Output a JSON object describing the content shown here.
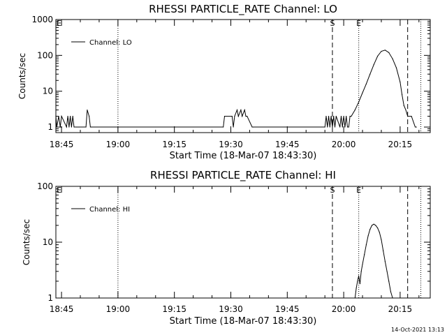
{
  "footer": {
    "timestamp": "14-Oct-2021 13:13"
  },
  "chart_data": [
    {
      "type": "line",
      "title": "RHESSI PARTICLE_RATE Channel: LO",
      "xlabel": "Start Time (18-Mar-07 18:43:30)",
      "ylabel": "Counts/sec",
      "yscale": "log",
      "ylim": [
        0.7,
        1000
      ],
      "xlim": [
        "18:43:30",
        "20:23:00"
      ],
      "x_ticks": [
        "18:45",
        "19:00",
        "19:15",
        "19:30",
        "19:45",
        "20:00",
        "20:15"
      ],
      "y_ticks": [
        "1",
        "10",
        "100",
        "1000"
      ],
      "legend": {
        "position": "top-left",
        "entries": [
          "Channel: LO"
        ]
      },
      "markers": [
        {
          "label": "E",
          "time": "18:43:30",
          "style": "none"
        },
        {
          "label": "",
          "time": "19:00:00",
          "style": "dotted"
        },
        {
          "label": "S",
          "time": "19:57:00",
          "style": "dashed"
        },
        {
          "label": "E",
          "time": "20:04:00",
          "style": "dotted"
        },
        {
          "label": "",
          "time": "20:17:00",
          "style": "dashed"
        },
        {
          "label": "",
          "time": "20:20:30",
          "style": "dotted"
        }
      ],
      "series": [
        {
          "x": [
            "18:43:30",
            "18:43:45",
            "18:44:15",
            "18:44:40",
            "18:45:00",
            "18:46:20",
            "18:46:40",
            "18:47:00",
            "18:47:20",
            "18:47:40",
            "18:48:00",
            "18:48:20",
            "18:49:00",
            "18:49:20",
            "18:49:40",
            "18:51:30",
            "18:51:50",
            "18:52:20",
            "18:52:40",
            "18:53:00",
            "19:28:00",
            "19:28:20",
            "19:30:20",
            "19:30:40",
            "19:31:00",
            "19:31:40",
            "19:32:00",
            "19:32:40",
            "19:33:00",
            "19:33:40",
            "19:34:00",
            "19:34:20",
            "19:35:40",
            "19:36:00",
            "19:55:00",
            "19:55:20",
            "19:55:40",
            "19:56:00",
            "19:56:20",
            "19:56:40",
            "19:57:00",
            "19:57:20",
            "19:57:40",
            "19:58:00",
            "19:59:00",
            "19:59:20",
            "19:59:40",
            "20:00:00",
            "20:00:20",
            "20:00:40",
            "20:01:00",
            "20:01:20",
            "20:01:40",
            "20:02:00",
            "20:03:00",
            "20:04:00",
            "20:05:00",
            "20:06:00",
            "20:07:00",
            "20:08:00",
            "20:09:00",
            "20:10:00",
            "20:11:00",
            "20:12:00",
            "20:13:00",
            "20:14:00",
            "20:15:00",
            "20:15:30",
            "20:16:00",
            "20:16:30",
            "20:17:00",
            "20:18:00",
            "20:19:00",
            "20:19:20"
          ],
          "y": [
            2,
            1,
            2,
            1,
            2,
            1,
            2,
            1,
            2,
            1,
            2,
            1,
            1,
            1,
            1,
            1,
            3,
            2,
            1,
            1,
            1,
            2,
            2,
            1,
            2,
            3,
            2,
            3,
            2,
            3,
            2,
            2,
            1,
            1,
            1,
            2,
            1,
            2,
            1,
            2,
            1,
            2,
            1,
            2,
            1,
            2,
            1,
            2,
            1,
            2,
            1,
            1,
            2,
            2,
            3,
            5,
            9,
            16,
            30,
            55,
            95,
            130,
            140,
            120,
            80,
            45,
            18,
            8,
            4,
            3,
            2,
            2,
            1,
            1
          ]
        }
      ]
    },
    {
      "type": "line",
      "title": "RHESSI PARTICLE_RATE Channel: HI",
      "xlabel": "Start Time (18-Mar-07 18:43:30)",
      "ylabel": "Counts/sec",
      "yscale": "log",
      "ylim": [
        1,
        100
      ],
      "xlim": [
        "18:43:30",
        "20:23:00"
      ],
      "x_ticks": [
        "18:45",
        "19:00",
        "19:15",
        "19:30",
        "19:45",
        "20:00",
        "20:15"
      ],
      "y_ticks": [
        "1",
        "10",
        "100"
      ],
      "legend": {
        "position": "top-left",
        "entries": [
          "Channel: HI"
        ]
      },
      "markers": [
        {
          "label": "E",
          "time": "18:43:30",
          "style": "none"
        },
        {
          "label": "",
          "time": "19:00:00",
          "style": "dotted"
        },
        {
          "label": "S",
          "time": "19:57:00",
          "style": "dashed"
        },
        {
          "label": "E",
          "time": "20:04:00",
          "style": "dotted"
        },
        {
          "label": "",
          "time": "20:17:00",
          "style": "dashed"
        },
        {
          "label": "",
          "time": "20:20:30",
          "style": "dotted"
        }
      ],
      "series": [
        {
          "x": [
            "20:03:00",
            "20:03:20",
            "20:03:40",
            "20:04:00",
            "20:04:20",
            "20:04:40",
            "20:05:00",
            "20:05:30",
            "20:06:00",
            "20:06:30",
            "20:07:00",
            "20:07:30",
            "20:08:00",
            "20:08:30",
            "20:09:00",
            "20:09:30",
            "20:10:00",
            "20:10:30",
            "20:11:00",
            "20:11:30",
            "20:12:00",
            "20:12:30",
            "20:13:00"
          ],
          "y": [
            1,
            1.5,
            2,
            2.5,
            1.8,
            3,
            4,
            6,
            9,
            13,
            17,
            20,
            21,
            20,
            18,
            15,
            11,
            7,
            4.5,
            3,
            2,
            1.3,
            1
          ]
        }
      ]
    }
  ]
}
